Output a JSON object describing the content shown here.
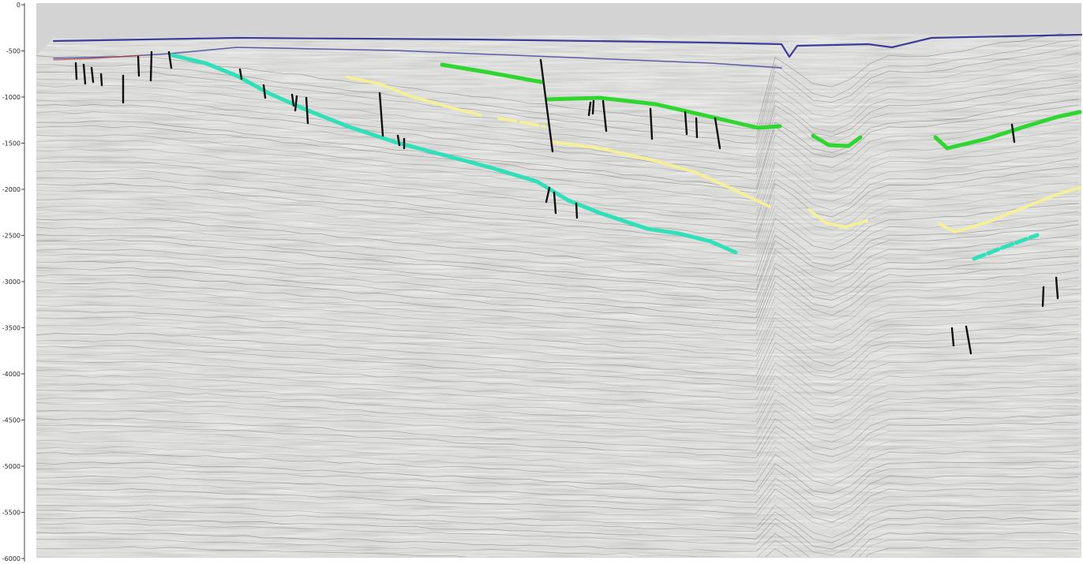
{
  "depth_axis": {
    "ticks": [
      "0",
      "-500",
      "-1000",
      "-1500",
      "-2000",
      "-2500",
      "-3000",
      "-3500",
      "-4000",
      "-4500",
      "-5000",
      "-5500",
      "-6000"
    ]
  },
  "colors": {
    "frame_background": "#d3d3d3",
    "seismic_base": "#c8c8c6",
    "seismic_dark": "#3a3a3a",
    "seafloor": "#3c3c9a",
    "horizon_green": "#2fd62f",
    "horizon_yellow": "#f5ef9a",
    "horizon_cyan": "#2fe0b8",
    "faults": "#111111"
  },
  "layers": [
    {
      "id": "seafloor",
      "icon": "seafloor-horizon-line"
    },
    {
      "id": "green",
      "icon": "green-horizon-line"
    },
    {
      "id": "yellow",
      "icon": "yellow-horizon-line"
    },
    {
      "id": "cyan",
      "icon": "cyan-horizon-line"
    },
    {
      "id": "faults",
      "icon": "fault-sticks"
    }
  ]
}
